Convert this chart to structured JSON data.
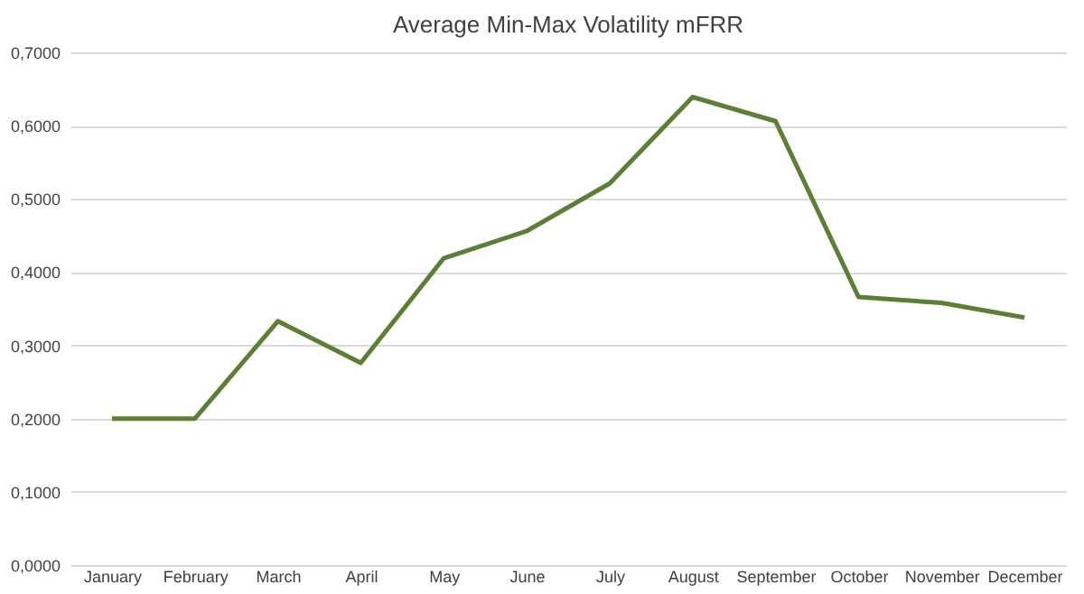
{
  "chart_data": {
    "type": "line",
    "title": "Average Min-Max Volatility mFRR",
    "categories": [
      "January",
      "February",
      "March",
      "April",
      "May",
      "June",
      "July",
      "August",
      "September",
      "October",
      "November",
      "December"
    ],
    "series": [
      {
        "color": "#5b7f35",
        "values": [
          0.2,
          0.2,
          0.333,
          0.276,
          0.419,
          0.456,
          0.521,
          0.639,
          0.606,
          0.366,
          0.358,
          0.338
        ]
      }
    ],
    "ylim": [
      0,
      0.7
    ],
    "yticks": [
      {
        "value": 0,
        "label": "0,0000"
      },
      {
        "value": 0.1,
        "label": "0,1000"
      },
      {
        "value": 0.2,
        "label": "0,2000"
      },
      {
        "value": 0.3,
        "label": "0,3000"
      },
      {
        "value": 0.4,
        "label": "0,4000"
      },
      {
        "value": 0.5,
        "label": "0,5000"
      },
      {
        "value": 0.6,
        "label": "0,6000"
      },
      {
        "value": 0.7,
        "label": "0,7000"
      }
    ],
    "grid": "y",
    "marker": "none",
    "line_style": "solid"
  }
}
